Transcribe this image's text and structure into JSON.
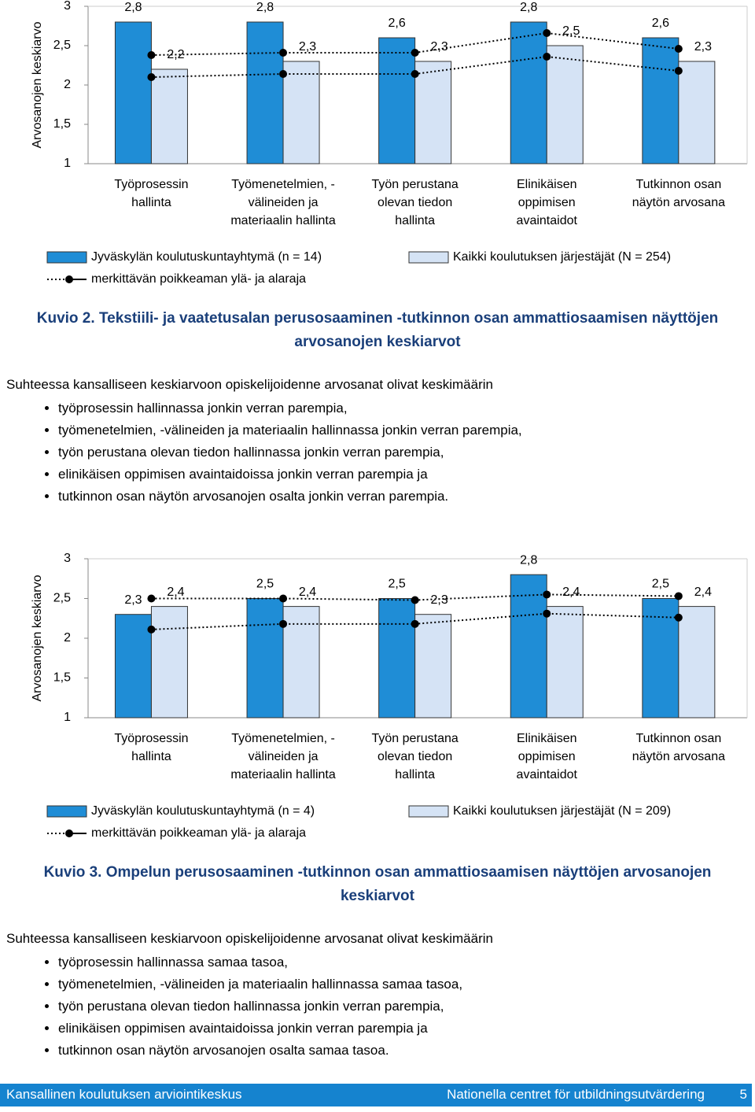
{
  "chart_data": [
    {
      "type": "bar",
      "y_label": "Arvosanojen keskiarvo",
      "categories": [
        "Työprosessin\nhallinta",
        "Työmenetelmien, -\nvälineiden ja\nmateriaalin hallinta",
        "Työn perustana\nolevan tiedon\nhallinta",
        "Elinikäisen\noppimisen\navaintaidot",
        "Tutkinnon osan\nnäytön arvosana"
      ],
      "series": [
        {
          "name": "Jyväskylän koulutuskuntayhtymä (n = 14)",
          "color": "#1f8dd6",
          "values": [
            2.8,
            2.8,
            2.6,
            2.8,
            2.6
          ],
          "value_labels": [
            "2,8",
            "2,8",
            "2,6",
            "2,8",
            "2,6"
          ]
        },
        {
          "name": "Kaikki koulutuksen järjestäjät (N = 254)",
          "color": "#d5e3f5",
          "values": [
            2.2,
            2.3,
            2.3,
            2.5,
            2.3
          ],
          "value_labels": [
            "2,2",
            "2,3",
            "2,3",
            "2,5",
            "2,3"
          ]
        },
        {
          "name": "merkittävän poikkeaman ylä- ja alaraja",
          "color": "#000000",
          "type": "line",
          "upper": [
            2.38,
            2.41,
            2.41,
            2.66,
            2.46
          ],
          "lower": [
            2.1,
            2.14,
            2.14,
            2.36,
            2.18
          ]
        }
      ],
      "ylim": [
        1,
        3
      ],
      "yticks": [
        1,
        {
          "value": 1.5,
          "label": "1,5"
        },
        2,
        {
          "value": 2.5,
          "label": "2,5"
        },
        3
      ]
    },
    {
      "type": "bar",
      "y_label": "Arvosanojen keskiarvo",
      "categories": [
        "Työprosessin\nhallinta",
        "Työmenetelmien, -\nvälineiden ja\nmateriaalin hallinta",
        "Työn perustana\nolevan tiedon\nhallinta",
        "Elinikäisen\noppimisen\navaintaidot",
        "Tutkinnon osan\nnäytön arvosana"
      ],
      "series": [
        {
          "name": "Jyväskylän koulutuskuntayhtymä (n = 4)",
          "color": "#1f8dd6",
          "values": [
            2.3,
            2.5,
            2.5,
            2.8,
            2.5
          ],
          "value_labels": [
            "2,3",
            "2,5",
            "2,5",
            "2,8",
            "2,5"
          ]
        },
        {
          "name": "Kaikki koulutuksen järjestäjät (N = 209)",
          "color": "#d5e3f5",
          "values": [
            2.4,
            2.4,
            2.3,
            2.4,
            2.4
          ],
          "value_labels": [
            "2,4",
            "2,4",
            "2,3",
            "2,4",
            "2,4"
          ]
        },
        {
          "name": "merkittävän poikkeaman ylä- ja alaraja",
          "color": "#000000",
          "type": "line",
          "upper": [
            2.5,
            2.5,
            2.48,
            2.55,
            2.53
          ],
          "lower": [
            2.11,
            2.18,
            2.18,
            2.31,
            2.26
          ]
        }
      ],
      "ylim": [
        1,
        3
      ],
      "yticks": [
        1,
        {
          "value": 1.5,
          "label": "1,5"
        },
        2,
        {
          "value": 2.5,
          "label": "2,5"
        },
        3
      ]
    }
  ],
  "sections": [
    {
      "caption_label": "Kuvio 2.",
      "caption": "Tekstiili- ja vaatetusalan perusosaaminen -tutkinnon osan ammattiosaamisen näyttöjen arvosanojen keskiarvot",
      "intro": "Suhteessa kansalliseen keskiarvoon opiskelijoidenne arvosanat olivat keskimäärin",
      "bullets": [
        "työprosessin hallinnassa jonkin verran parempia,",
        "työmenetelmien, -välineiden ja materiaalin hallinnassa jonkin verran parempia,",
        "työn perustana olevan tiedon hallinnassa jonkin verran parempia,",
        "elinikäisen oppimisen avaintaidoissa jonkin verran parempia ja",
        "tutkinnon osan näytön arvosanojen osalta jonkin verran parempia."
      ]
    },
    {
      "caption_label": "Kuvio 3.",
      "caption": "Ompelun perusosaaminen -tutkinnon osan ammattiosaamisen näyttöjen arvosanojen keskiarvot",
      "intro": "Suhteessa kansalliseen keskiarvoon opiskelijoidenne arvosanat olivat keskimäärin",
      "bullets": [
        "työprosessin hallinnassa samaa tasoa,",
        "työmenetelmien, -välineiden ja materiaalin hallinnassa samaa tasoa,",
        "työn perustana olevan tiedon hallinnassa jonkin verran parempia,",
        "elinikäisen oppimisen avaintaidoissa jonkin verran parempia ja",
        "tutkinnon osan näytön arvosanojen osalta samaa tasoa."
      ]
    }
  ],
  "footer": {
    "left": "Kansallinen koulutuksen arviointikeskus",
    "right": "Nationella centret för utbildningsutvärdering",
    "page": 5
  }
}
